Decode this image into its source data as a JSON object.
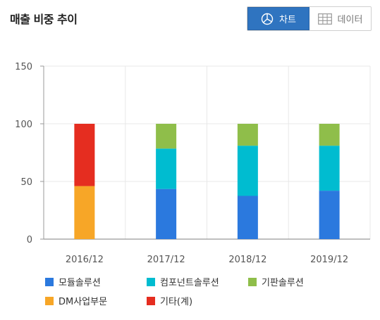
{
  "header": {
    "title": "매출 비중 추이",
    "chart_button_label": "차트",
    "data_button_label": "데이터"
  },
  "colors": {
    "accent": "#2f74c0",
    "module": "#2b79de",
    "component": "#00bcd0",
    "substrate": "#8fbe4a",
    "dm": "#f7a627",
    "other": "#e52d20"
  },
  "chart_data": {
    "type": "bar",
    "stacked": true,
    "categories": [
      "2016/12",
      "2017/12",
      "2018/12",
      "2019/12"
    ],
    "ylim": [
      0,
      150
    ],
    "yticks": [
      "0",
      "50",
      "100",
      "150"
    ],
    "grid": true,
    "legend_position": "bottom",
    "series": [
      {
        "name": "모듈솔루션",
        "color_key": "module",
        "values": [
          0,
          43.5,
          37.5,
          42
        ]
      },
      {
        "name": "컴포넌트솔루션",
        "color_key": "component",
        "values": [
          0,
          35,
          43.5,
          39
        ]
      },
      {
        "name": "기판솔루션",
        "color_key": "substrate",
        "values": [
          0,
          21.5,
          19,
          19
        ]
      },
      {
        "name": "DM사업부문",
        "color_key": "dm",
        "values": [
          46,
          0,
          0,
          0
        ]
      },
      {
        "name": "기타(계)",
        "color_key": "other",
        "values": [
          54,
          0,
          0,
          0
        ]
      }
    ]
  }
}
